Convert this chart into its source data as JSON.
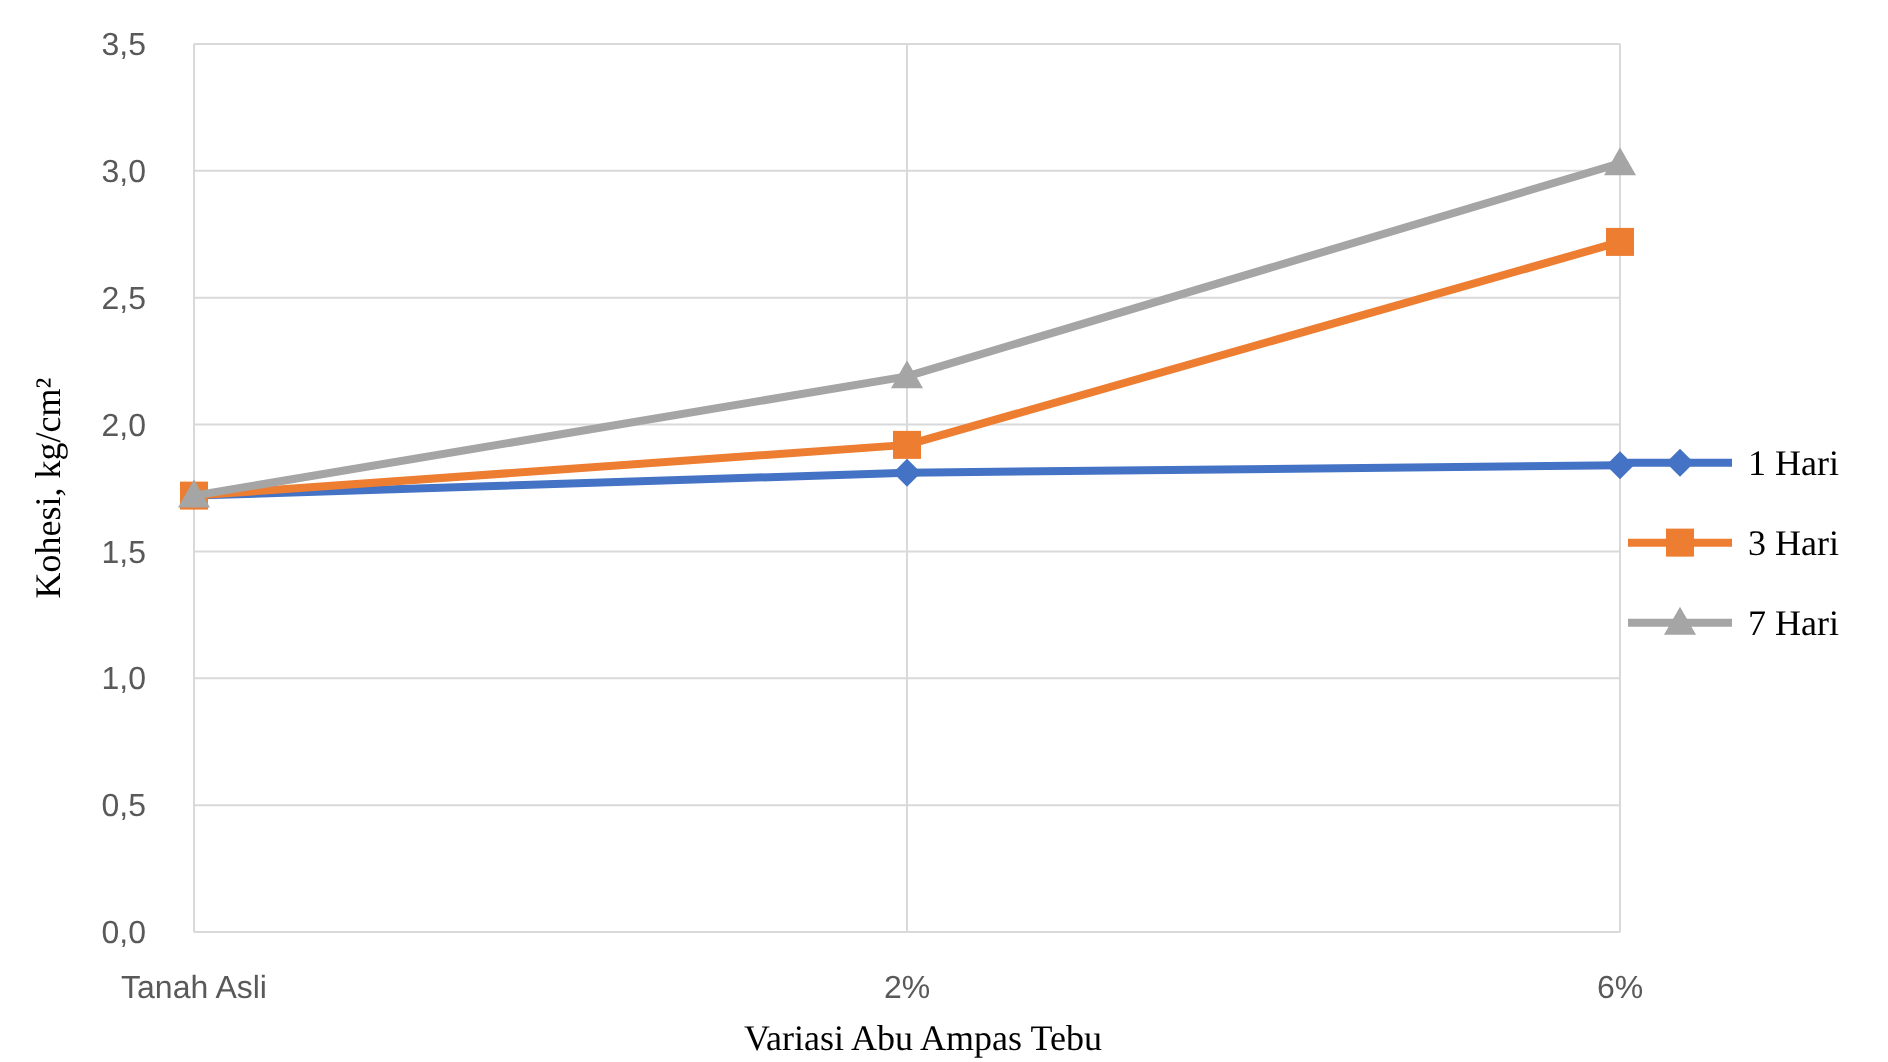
{
  "chart_data": {
    "type": "line",
    "xlabel": "Variasi Abu Ampas Tebu",
    "ylabel": "Kohesi, kg/cm²",
    "categories": [
      "Tanah Asli",
      "2%",
      "6%"
    ],
    "series": [
      {
        "name": "1 Hari",
        "color": "#4472c4",
        "marker": "diamond",
        "values": [
          1.72,
          1.81,
          1.84
        ]
      },
      {
        "name": "3 Hari",
        "color": "#ed7d31",
        "marker": "square",
        "values": [
          1.72,
          1.92,
          2.72
        ]
      },
      {
        "name": "7 Hari",
        "color": "#a5a5a5",
        "marker": "triangle",
        "values": [
          1.72,
          2.19,
          3.03
        ]
      }
    ],
    "ylim": [
      0,
      3.5
    ],
    "yticks": [
      {
        "value": 0,
        "label": "0,0"
      },
      {
        "value": 0.5,
        "label": "0,5"
      },
      {
        "value": 1,
        "label": "1,0"
      },
      {
        "value": 1.5,
        "label": "1,5"
      },
      {
        "value": 2,
        "label": "2,0"
      },
      {
        "value": 2.5,
        "label": "2,5"
      },
      {
        "value": 3,
        "label": "3,0"
      },
      {
        "value": 3.5,
        "label": "3,5"
      }
    ],
    "grid": true,
    "legend": "right",
    "line_style": "solid"
  }
}
